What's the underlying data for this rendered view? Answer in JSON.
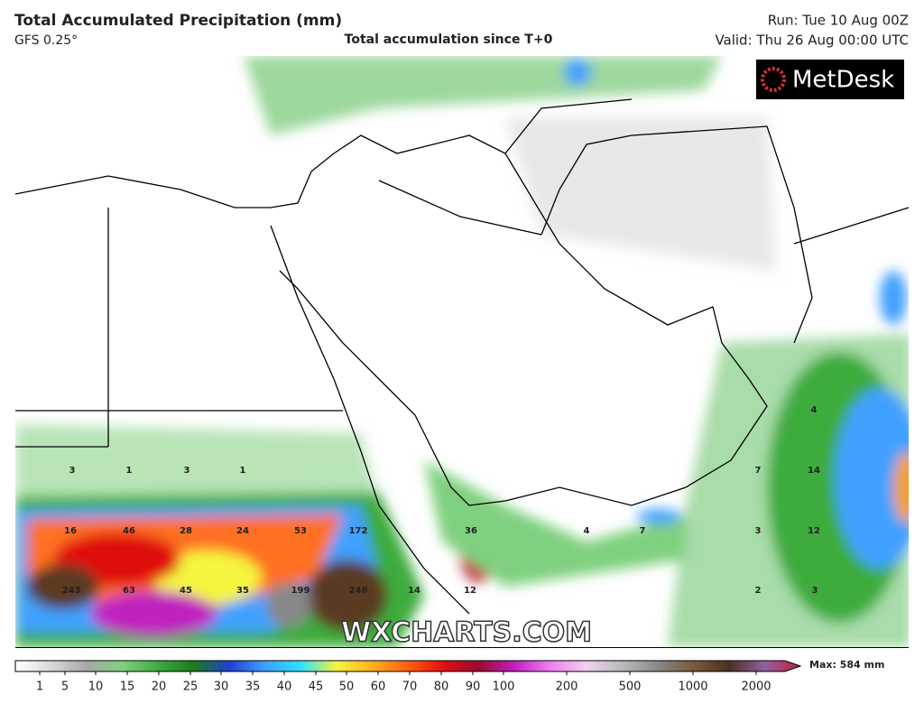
{
  "header": {
    "title": "Total Accumulated Precipitation (mm)",
    "model": "GFS 0.25°",
    "subtitle": "Total accumulation since T+0",
    "run": "Run: Tue 10 Aug 00Z",
    "valid": "Valid: Thu 26 Aug 00:00 UTC"
  },
  "logo": "MetDesk",
  "watermark": "WXCHARTS.COM",
  "map": {
    "labels": [
      3,
      1,
      3,
      1,
      16,
      46,
      28,
      24,
      53,
      172,
      243,
      63,
      45,
      35,
      199,
      246,
      14,
      12,
      36,
      4,
      7,
      4,
      7,
      14,
      3,
      12,
      2,
      3
    ]
  },
  "colorbar": {
    "ticks": [
      1,
      5,
      10,
      15,
      20,
      25,
      30,
      35,
      40,
      45,
      50,
      60,
      70,
      80,
      90,
      100,
      200,
      500,
      1000,
      2000
    ],
    "colors": [
      "#ffffff",
      "#d9d9d9",
      "#a8a8a8",
      "#7fd07f",
      "#3cac3c",
      "#1c7a1c",
      "#1e3fd0",
      "#3fa0ff",
      "#2fe0ff",
      "#f5f540",
      "#ffb020",
      "#ff6010",
      "#e01010",
      "#9a0a30",
      "#c020c0",
      "#f080f0",
      "#f0d0f0",
      "#bbbbbb",
      "#888888",
      "#7a5a3a",
      "#4a3020",
      "#9060a0",
      "#c02040"
    ],
    "max": "Max: 584 mm"
  }
}
